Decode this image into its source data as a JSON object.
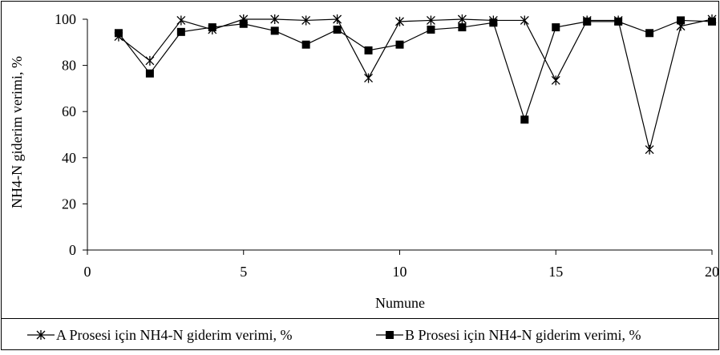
{
  "chart_data": {
    "type": "line",
    "title": "",
    "xlabel": "Numune",
    "ylabel": "NH4-N giderim verimi, %",
    "xlim": [
      0,
      20
    ],
    "ylim": [
      0,
      100
    ],
    "xticks": [
      0,
      5,
      10,
      15,
      20
    ],
    "yticks": [
      0,
      20,
      40,
      60,
      80,
      100
    ],
    "grid": false,
    "legend_position": "bottom",
    "x": [
      1,
      2,
      3,
      4,
      5,
      6,
      7,
      8,
      9,
      10,
      11,
      12,
      13,
      14,
      15,
      16,
      17,
      18,
      19,
      20
    ],
    "series": [
      {
        "name": "A Prosesi için NH4-N giderim verimi, %",
        "marker": "asterisk",
        "values": [
          92.5,
          82,
          99.5,
          95.5,
          100,
          100,
          99.5,
          100,
          74.5,
          99,
          99.5,
          100,
          99.5,
          99.5,
          73.5,
          99.5,
          99.5,
          43.5,
          97,
          100
        ]
      },
      {
        "name": "B Prosesi için NH4-N giderim verimi, %",
        "marker": "square",
        "values": [
          94,
          76.5,
          94.5,
          96.5,
          98,
          95,
          89,
          95.5,
          86.5,
          89,
          95.5,
          96.5,
          98.5,
          56.5,
          96.5,
          99,
          99,
          94,
          99.5,
          99
        ]
      }
    ]
  }
}
